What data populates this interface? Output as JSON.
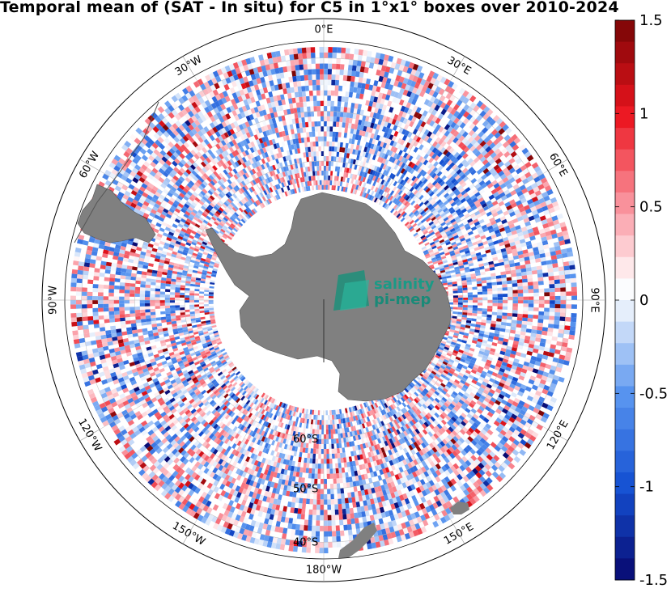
{
  "chart_data": {
    "type": "heatmap",
    "title": "Temporal mean of (SAT - In situ) for C5 in 1°x1° boxes over 2010-2024",
    "projection": "south polar stereographic",
    "grid_cell": "1°x1°",
    "data_band": "approx. 65°S to 38°S, all longitudes",
    "lon_labels": [
      "0°E",
      "30°E",
      "60°E",
      "90°E",
      "120°E",
      "150°E",
      "180°W",
      "150°W",
      "120°W",
      "90°W",
      "60°W",
      "30°W"
    ],
    "lat_labels": [
      "60°S",
      "50°S",
      "40°S"
    ],
    "colorbar": {
      "min": -1.5,
      "max": 1.5,
      "levels": 26,
      "ticks": [
        -1.5,
        -1,
        -0.5,
        0,
        0.5,
        1,
        1.5
      ],
      "tick_labels": [
        "-1.5",
        "-1",
        "-0.5",
        "0",
        "0.5",
        "1",
        "1.5"
      ],
      "colormap": "blue-white-red"
    },
    "grid": true,
    "land_color": "#808080"
  },
  "logo": {
    "line1": "salinity",
    "line2": "pi-mep"
  }
}
